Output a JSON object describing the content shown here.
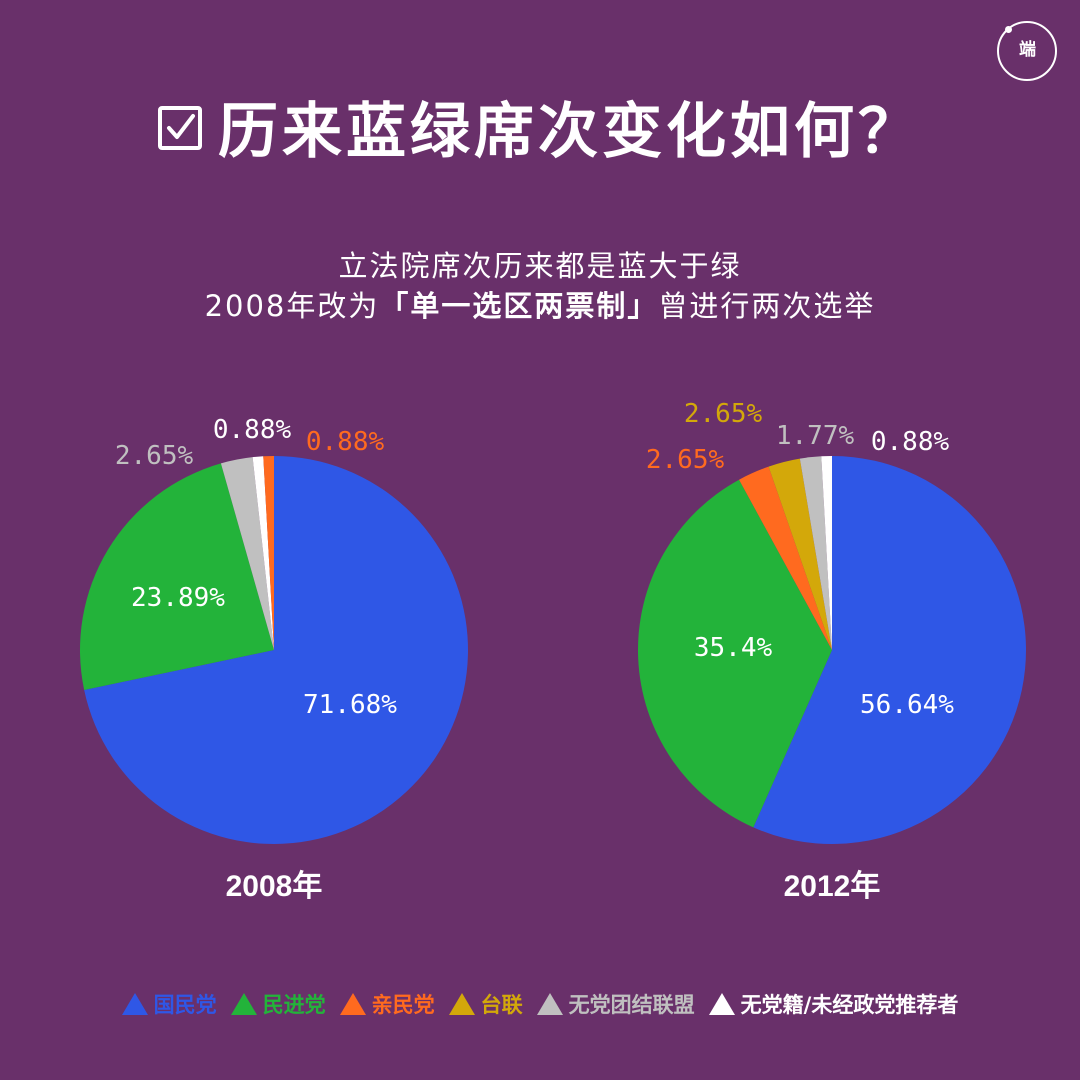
{
  "title": "历来蓝绿席次变化如何？",
  "subtitle": {
    "line1": "立法院席次历来都是蓝大于绿",
    "line2_prefix": "2008年改为",
    "line2_bold": "「单一选区两票制」",
    "line2_suffix": "曾进行两次选举"
  },
  "logo": {
    "text": "端"
  },
  "colors": {
    "background": "#69306a",
    "kmt": "#2f57e6",
    "dpp": "#23b33a",
    "pfp": "#ff6a1f",
    "tsu": "#d3a80a",
    "npsu": "#c0c0c0",
    "independent": "#ffffff"
  },
  "legend": [
    {
      "label": "国民党",
      "color": "#2f57e6"
    },
    {
      "label": "民进党",
      "color": "#23b33a"
    },
    {
      "label": "亲民党",
      "color": "#ff6a1f"
    },
    {
      "label": "台联",
      "color": "#d3a80a"
    },
    {
      "label": "无党团结联盟",
      "color": "#c0c0c0"
    },
    {
      "label": "无党籍/未经政党推荐者",
      "color": "#ffffff"
    }
  ],
  "chart_data": [
    {
      "type": "pie",
      "title": "2008年",
      "categories": [
        "国民党",
        "民进党",
        "无党团结联盟",
        "无党籍/未经政党推荐者",
        "亲民党"
      ],
      "values": [
        71.68,
        23.89,
        2.65,
        0.88,
        0.88
      ],
      "labels": [
        "71.68%",
        "23.89%",
        "2.65%",
        "0.88%",
        "0.88%"
      ]
    },
    {
      "type": "pie",
      "title": "2012年",
      "categories": [
        "国民党",
        "民进党",
        "亲民党",
        "台联",
        "无党团结联盟",
        "无党籍/未经政党推荐者"
      ],
      "values": [
        56.64,
        35.4,
        2.65,
        2.65,
        1.77,
        0.88
      ],
      "labels": [
        "56.64%",
        "35.4%",
        "2.65%",
        "2.65%",
        "1.77%",
        "0.88%"
      ]
    }
  ]
}
